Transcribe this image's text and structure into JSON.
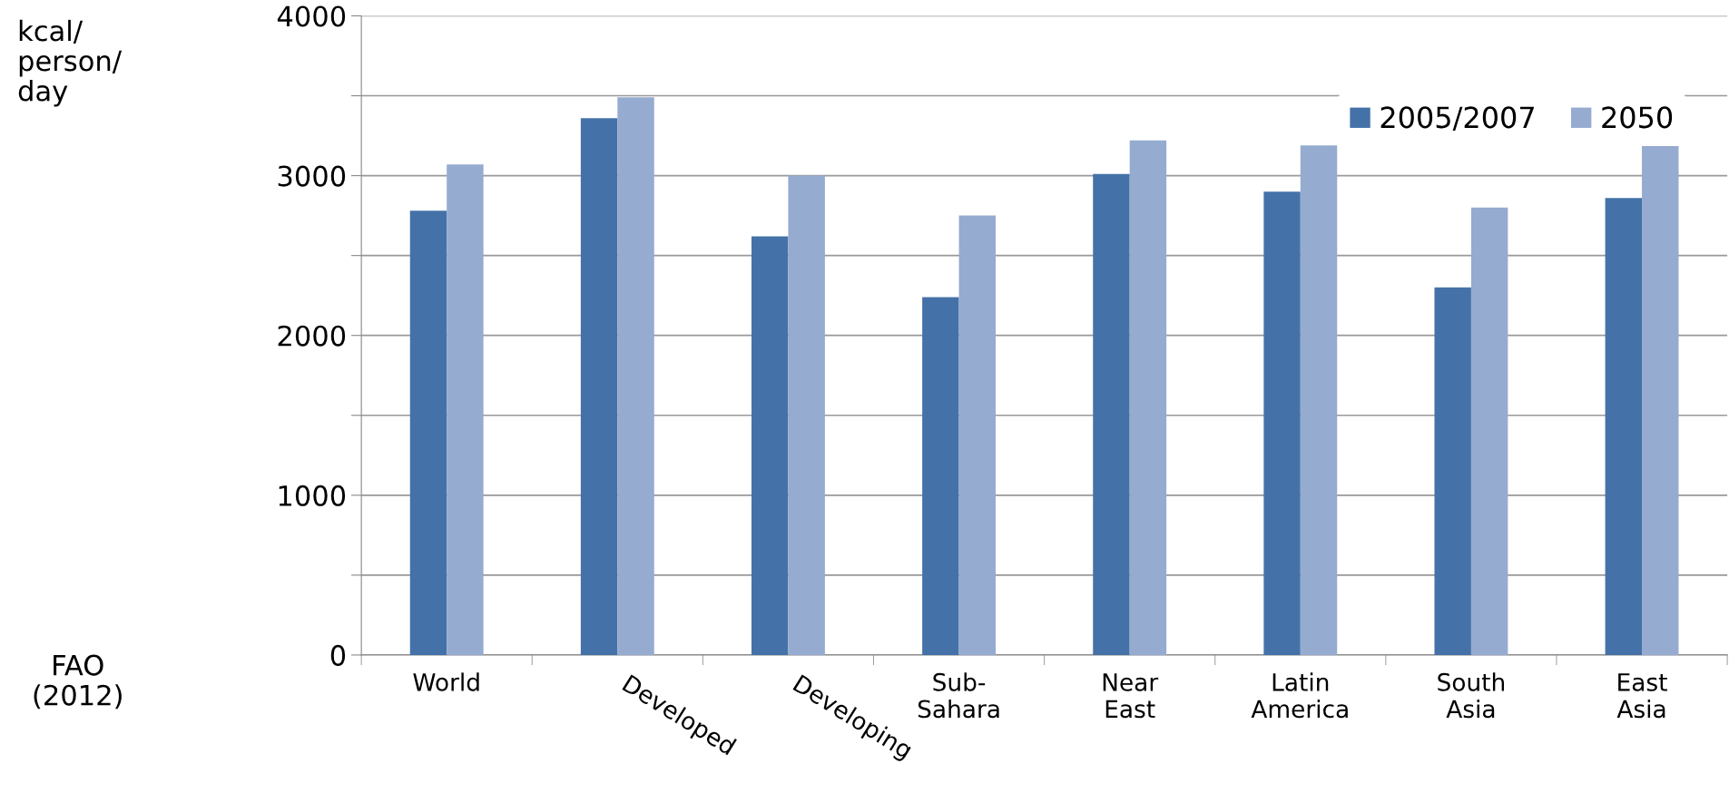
{
  "chart_data": {
    "type": "bar",
    "categories": [
      "World",
      "Developed",
      "Developing",
      "Sub-\nSahara",
      "Near\nEast",
      "Latin\nAmerica",
      "South\nAsia",
      "East\nAsia"
    ],
    "series": [
      {
        "name": "2005/2007",
        "color": "#4472a8",
        "values": [
          2780,
          3360,
          2620,
          2240,
          3010,
          2900,
          2300,
          2860
        ]
      },
      {
        "name": "2050",
        "color": "#95abd0",
        "values": [
          3070,
          3490,
          3000,
          2750,
          3220,
          3190,
          2800,
          3190
        ]
      }
    ],
    "annotations": [
      "kcal/\nperson/\nday",
      "FAO\n(2012)"
    ],
    "ylim": [
      0,
      4000
    ],
    "yticks": [
      0,
      {
        "value": 500,
        "label": null
      },
      1000,
      {
        "value": 1500,
        "label": null
      },
      2000,
      {
        "value": 2500,
        "label": null
      },
      3000,
      {
        "value": 3500,
        "label": null
      },
      4000
    ],
    "grid": "y",
    "legend": "top right"
  }
}
